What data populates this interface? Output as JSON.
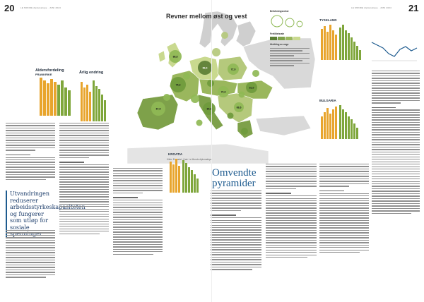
{
  "header": {
    "page_left": "20",
    "page_right": "21",
    "running_left": "LE MONDE diplomatique · JUNI 2024",
    "running_right": "LE MONDE diplomatique · JUNI 2024"
  },
  "map": {
    "title": "Revner mellom øst og vest",
    "legend_title_1": "Befolkningsvekst",
    "legend_title_2": "Fertilitetsrate",
    "legend_title_3": "Utvikling av unge",
    "bubble_labels": [
      "88,8",
      "75,3",
      "67,5",
      "89,4",
      "70,6",
      "84,9",
      "72,6",
      "81,0",
      "68,6",
      "68,3",
      "74,6",
      "59,8",
      "62,8",
      "49,8",
      "58,4",
      "33,8",
      "61,6",
      "77,1",
      "99,5",
      "50,2"
    ],
    "caption": "Kilde: Eurostat · Kart: Le Monde diplomatique"
  },
  "countries": {
    "left_chart_title": "Aldersfordeling",
    "left_chart_sub": "FRANKRIKE",
    "right_chart_title": "Årlig endring",
    "tyskland": "TYSKLAND",
    "bulgaria": "BULGARIA",
    "kroatia": "KROATIA"
  },
  "articles": {
    "pull_quote": "Utvandringen reduserer arbeidsstyrkeskapasiteten og fungerer som utløp for sosiale spenninger",
    "headline": "Omvendte pyramider",
    "byline": "av Le Monde diplomatique"
  },
  "colors": {
    "accent_blue": "#1e5b8f",
    "bar_orange": "#e8a52d",
    "bar_green": "#7fa63b",
    "map_green_dark": "#7ea14a",
    "map_green_light": "#c9d98f",
    "map_sea": "#ffffff",
    "map_land": "#cfcfcf",
    "bubble_green": "#8fb955",
    "bubble_dark": "#5b7e35"
  }
}
